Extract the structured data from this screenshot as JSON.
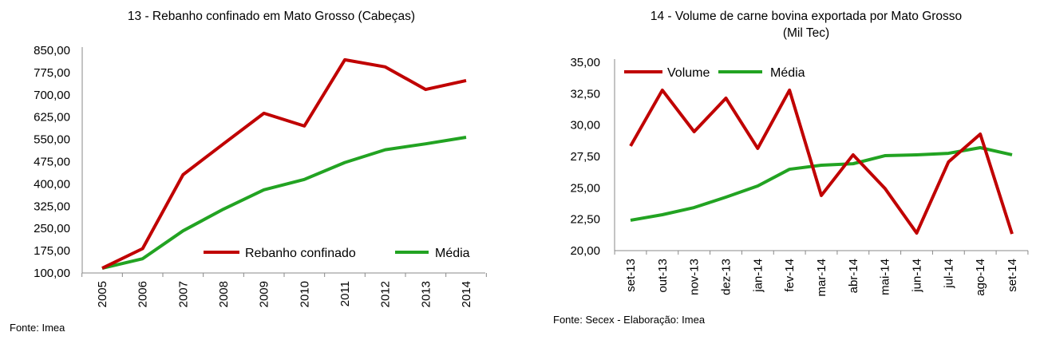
{
  "colors": {
    "primary": "#C00000",
    "average": "#22A322"
  },
  "chart_data": [
    {
      "type": "line",
      "title": "13 - Rebanho confinado em Mato Grosso (Cabeças)",
      "source": "Fonte: Imea",
      "categories": [
        "2005",
        "2006",
        "2007",
        "2008",
        "2009",
        "2010",
        "2011",
        "2012",
        "2013",
        "2014"
      ],
      "ylim": [
        100,
        850
      ],
      "yticks": [
        "100,00",
        "175,00",
        "250,00",
        "325,00",
        "400,00",
        "475,00",
        "550,00",
        "625,00",
        "700,00",
        "775,00",
        "850,00"
      ],
      "ytick_values": [
        100,
        175,
        250,
        325,
        400,
        475,
        550,
        625,
        700,
        775,
        850
      ],
      "legend_position": "bottom-right",
      "series": [
        {
          "name": "Rebanho confinado",
          "values": [
            116,
            182,
            431,
            535,
            638,
            595,
            818,
            794,
            718,
            748
          ]
        },
        {
          "name": "Média",
          "values": [
            116,
            148,
            242,
            315,
            380,
            415,
            472,
            515,
            535,
            557
          ]
        }
      ]
    },
    {
      "type": "line",
      "title": "14 - Volume de carne bovina exportada por Mato Grosso",
      "subtitle": "(Mil Tec)",
      "source": "Fonte: Secex - Elaboração: Imea",
      "categories": [
        "set-13",
        "out-13",
        "nov-13",
        "dez-13",
        "jan-14",
        "fev-14",
        "mar-14",
        "abr-14",
        "mai-14",
        "jun-14",
        "jul-14",
        "ago-14",
        "set-14"
      ],
      "ylim": [
        20,
        35
      ],
      "yticks": [
        "20,00",
        "22,50",
        "25,00",
        "27,50",
        "30,00",
        "32,50",
        "35,00"
      ],
      "ytick_values": [
        20,
        22.5,
        25,
        27.5,
        30,
        32.5,
        35
      ],
      "legend_position": "top-left",
      "series": [
        {
          "name": "Volume",
          "values": [
            28.33,
            32.78,
            29.47,
            32.14,
            28.14,
            32.78,
            24.39,
            27.63,
            24.96,
            21.4,
            27.06,
            29.28,
            21.33
          ]
        },
        {
          "name": "Média",
          "values": [
            22.42,
            22.86,
            23.43,
            24.26,
            25.15,
            26.48,
            26.8,
            26.92,
            27.56,
            27.63,
            27.75,
            28.2,
            27.63
          ]
        }
      ]
    }
  ]
}
